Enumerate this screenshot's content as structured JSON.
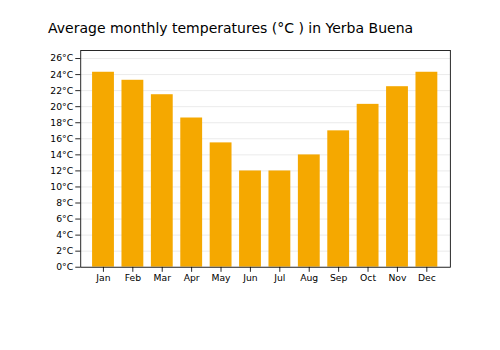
{
  "chart_data": {
    "type": "bar",
    "title": "Average monthly temperatures (°C ) in Yerba Buena",
    "categories": [
      "Jan",
      "Feb",
      "Mar",
      "Apr",
      "May",
      "Jun",
      "Jul",
      "Aug",
      "Sep",
      "Oct",
      "Nov",
      "Dec"
    ],
    "values": [
      24.3,
      23.3,
      21.5,
      18.6,
      15.5,
      12.0,
      12.0,
      14.0,
      17.0,
      20.3,
      22.5,
      24.3
    ],
    "color": "#F5A800",
    "ylim": [
      0,
      27
    ],
    "yticks": [
      {
        "value": 0,
        "label": "0°C"
      },
      {
        "value": 2,
        "label": "2°C"
      },
      {
        "value": 4,
        "label": "4°C"
      },
      {
        "value": 6,
        "label": "6°C"
      },
      {
        "value": 8,
        "label": "8°C"
      },
      {
        "value": 10,
        "label": "10°C"
      },
      {
        "value": 12,
        "label": "12°C"
      },
      {
        "value": 14,
        "label": "14°C"
      },
      {
        "value": 16,
        "label": "16°C"
      },
      {
        "value": 18,
        "label": "18°C"
      },
      {
        "value": 20,
        "label": "20°C"
      },
      {
        "value": 22,
        "label": "22°C"
      },
      {
        "value": 24,
        "label": "24°C"
      },
      {
        "value": 26,
        "label": "26°C"
      }
    ],
    "grid": true
  }
}
